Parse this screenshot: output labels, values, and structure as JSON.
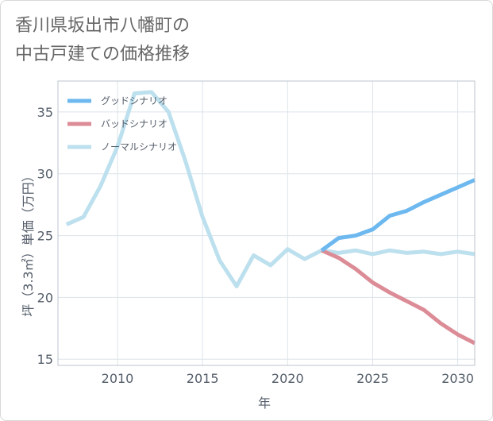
{
  "title": {
    "line1": "香川県坂出市八幡町の",
    "line2": "中古戸建ての価格推移"
  },
  "chart_data": {
    "type": "line",
    "title": "香川県坂出市八幡町の中古戸建ての価格推移",
    "xlabel": "年",
    "ylabel": "坪（3.3㎡）単価（万円）",
    "xlim": [
      2006.5,
      2031
    ],
    "ylim": [
      14.5,
      37.5
    ],
    "x_ticks": [
      2010,
      2015,
      2020,
      2025,
      2030
    ],
    "y_ticks": [
      15,
      20,
      25,
      30,
      35
    ],
    "grid": true,
    "legend_position": "top-left",
    "series": [
      {
        "name": "グッドシナリオ",
        "color": "#6cb8ef",
        "x": [
          2022,
          2023,
          2024,
          2025,
          2026,
          2027,
          2028,
          2029,
          2030,
          2031
        ],
        "values": [
          23.8,
          24.8,
          25.0,
          25.5,
          26.6,
          27.0,
          27.7,
          28.3,
          28.9,
          29.5
        ]
      },
      {
        "name": "バッドシナリオ",
        "color": "#dc8c96",
        "x": [
          2022,
          2023,
          2024,
          2025,
          2026,
          2027,
          2028,
          2029,
          2030,
          2031
        ],
        "values": [
          23.8,
          23.2,
          22.3,
          21.2,
          20.4,
          19.7,
          19.0,
          17.9,
          17.0,
          16.3
        ]
      },
      {
        "name": "ノーマルシナリオ",
        "color": "#bde0ee",
        "x": [
          2007,
          2008,
          2009,
          2010,
          2011,
          2012,
          2013,
          2014,
          2015,
          2016,
          2017,
          2018,
          2019,
          2020,
          2021,
          2022,
          2023,
          2024,
          2025,
          2026,
          2027,
          2028,
          2029,
          2030,
          2031
        ],
        "values": [
          25.9,
          26.5,
          29.0,
          32.2,
          36.5,
          36.6,
          35.0,
          31.0,
          26.5,
          23.0,
          20.9,
          23.4,
          22.6,
          23.9,
          23.1,
          23.8,
          23.6,
          23.8,
          23.5,
          23.8,
          23.6,
          23.7,
          23.5,
          23.7,
          23.5
        ]
      }
    ]
  }
}
